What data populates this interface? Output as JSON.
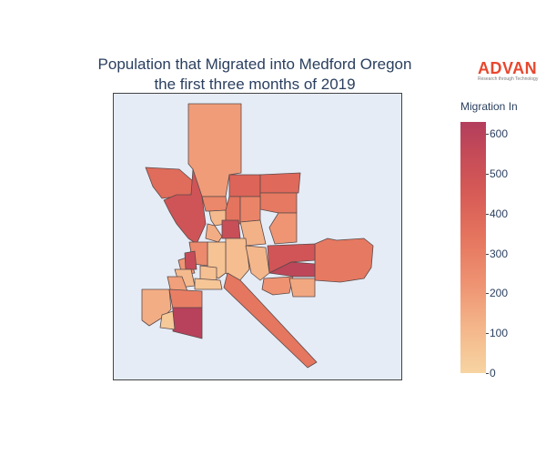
{
  "title_line1": "Population that Migrated into Medford Oregon",
  "title_line2": "the first three months of 2019",
  "logo": {
    "name": "ADVAN",
    "tagline": "Research through Technology"
  },
  "colorbar": {
    "title": "Migration In",
    "min": 0,
    "max": 630,
    "ticks": [
      "0",
      "100",
      "200",
      "300",
      "400",
      "500",
      "600"
    ],
    "colors": [
      "#f7d4a2",
      "#f4b68a",
      "#ee9272",
      "#e5755e",
      "#d65a56",
      "#c44a58",
      "#b33e5c"
    ]
  },
  "chart_data": {
    "type": "choropleth",
    "title": "Population that Migrated into Medford Oregon the first three months of 2019",
    "colorbar_title": "Migration In",
    "color_range": [
      0,
      630
    ],
    "regions": [
      {
        "id": "north-large",
        "value": 180
      },
      {
        "id": "northwest",
        "value": 350
      },
      {
        "id": "west-diagonal",
        "value": 460
      },
      {
        "id": "north-center-1",
        "value": 250
      },
      {
        "id": "north-center-2",
        "value": 380
      },
      {
        "id": "north-center-3",
        "value": 320
      },
      {
        "id": "north-center-4",
        "value": 90
      },
      {
        "id": "north-center-5",
        "value": 130
      },
      {
        "id": "center-small-red",
        "value": 500
      },
      {
        "id": "northeast-1",
        "value": 360
      },
      {
        "id": "northeast-2",
        "value": 300
      },
      {
        "id": "east-mid-1",
        "value": 200
      },
      {
        "id": "east-mid-2",
        "value": 260
      },
      {
        "id": "east-large",
        "value": 300
      },
      {
        "id": "east-red-1",
        "value": 450
      },
      {
        "id": "east-red-2",
        "value": 560
      },
      {
        "id": "east-small-1",
        "value": 210
      },
      {
        "id": "east-small-2",
        "value": 150
      },
      {
        "id": "center-1",
        "value": 120
      },
      {
        "id": "center-2",
        "value": 80
      },
      {
        "id": "center-3",
        "value": 100
      },
      {
        "id": "center-4",
        "value": 60
      },
      {
        "id": "center-5",
        "value": 240
      },
      {
        "id": "center-6",
        "value": 70
      },
      {
        "id": "center-7",
        "value": 200
      },
      {
        "id": "west-small-red",
        "value": 520
      },
      {
        "id": "west-small-1",
        "value": 90
      },
      {
        "id": "west-small-2",
        "value": 170
      },
      {
        "id": "west-small-3",
        "value": 50
      },
      {
        "id": "diagonal-strip",
        "value": 310
      },
      {
        "id": "southwest-1",
        "value": 130
      },
      {
        "id": "southwest-2",
        "value": 280
      },
      {
        "id": "southwest-red",
        "value": 600
      },
      {
        "id": "southwest-3",
        "value": 40
      }
    ]
  }
}
